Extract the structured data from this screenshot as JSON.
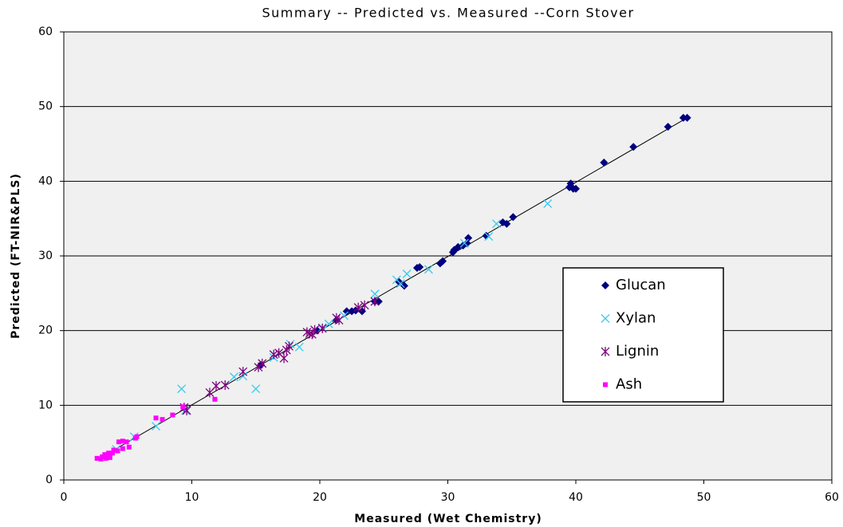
{
  "chart_data": {
    "type": "scatter",
    "title": "Summary -- Predicted vs. Measured --Corn Stover",
    "x_label": "Measured (Wet Chemistry)",
    "y_label": "Predicted (FT-NIR&PLS)",
    "xlim": [
      0,
      60
    ],
    "ylim": [
      0,
      60
    ],
    "xticks": [
      0,
      10,
      20,
      30,
      40,
      50,
      60
    ],
    "yticks": [
      0,
      10,
      20,
      30,
      40,
      50,
      60
    ],
    "grid": true,
    "legend_position": "right",
    "fit_line": {
      "x": [
        2.5,
        48.7
      ],
      "y": [
        2.6,
        48.5
      ]
    },
    "series": [
      {
        "name": "Glucan",
        "color": "#000080",
        "marker": "diamond",
        "x": [
          48.4,
          48.7,
          47.2,
          44.5,
          42.2,
          39.6,
          39.8,
          39.5,
          40.0,
          35.1,
          34.6,
          34.3,
          33.0,
          31.6,
          31.5,
          31.2,
          30.8,
          30.5,
          30.4,
          29.6,
          29.4,
          27.8,
          27.6,
          26.6,
          26.2,
          24.6,
          24.3,
          23.3,
          22.8,
          22.5,
          22.1,
          21.3,
          19.8,
          15.4
        ],
        "y": [
          48.5,
          48.5,
          47.3,
          44.6,
          42.5,
          39.7,
          39.0,
          39.2,
          39.0,
          35.2,
          34.3,
          34.5,
          32.7,
          32.4,
          31.7,
          31.4,
          31.2,
          30.8,
          30.5,
          29.3,
          29.0,
          28.5,
          28.4,
          26.0,
          26.5,
          23.9,
          23.9,
          22.6,
          22.7,
          22.6,
          22.6,
          21.4,
          20.0,
          15.4
        ]
      },
      {
        "name": "Xylan",
        "color": "#33ccee",
        "marker": "x",
        "x": [
          37.8,
          33.8,
          33.2,
          31.3,
          28.5,
          26.8,
          26.0,
          26.3,
          24.3,
          21.9,
          20.7,
          20.2,
          18.4,
          17.7,
          16.4,
          15.0,
          14.0,
          13.3,
          9.2,
          9.5,
          7.2,
          5.5,
          4.1
        ],
        "y": [
          37.0,
          34.3,
          32.6,
          31.7,
          28.2,
          27.6,
          26.8,
          26.3,
          24.9,
          22.0,
          20.9,
          20.4,
          17.8,
          18.2,
          16.4,
          12.2,
          13.9,
          13.8,
          12.2,
          9.3,
          7.2,
          5.8,
          4.1
        ]
      },
      {
        "name": "Lignin",
        "color": "#800080",
        "marker": "star",
        "x": [
          24.3,
          23.5,
          23.0,
          21.3,
          21.5,
          20.2,
          19.6,
          19.4,
          19.2,
          19.0,
          17.6,
          17.4,
          17.2,
          16.8,
          16.4,
          15.5,
          15.2,
          14.0,
          12.6,
          11.9,
          11.4,
          9.6,
          9.4
        ],
        "y": [
          23.9,
          23.4,
          23.1,
          21.7,
          21.4,
          20.3,
          20.1,
          19.5,
          19.6,
          19.8,
          17.9,
          17.4,
          16.3,
          17.0,
          16.8,
          15.6,
          15.1,
          14.5,
          12.7,
          12.6,
          11.7,
          9.3,
          9.7
        ]
      },
      {
        "name": "Ash",
        "color": "#ff00ff",
        "marker": "square",
        "x": [
          11.8,
          9.3,
          8.5,
          7.7,
          7.2,
          5.7,
          5.6,
          5.1,
          4.9,
          4.6,
          4.3,
          4.6,
          4.2,
          3.9,
          3.8,
          3.5,
          3.2,
          3.0,
          3.3,
          2.6,
          2.9,
          3.6
        ],
        "y": [
          10.8,
          9.8,
          8.7,
          8.1,
          8.3,
          5.8,
          5.6,
          4.4,
          5.1,
          5.2,
          5.1,
          4.2,
          3.9,
          4.0,
          3.6,
          3.6,
          3.4,
          3.1,
          2.9,
          2.9,
          2.8,
          3.0
        ]
      }
    ]
  }
}
